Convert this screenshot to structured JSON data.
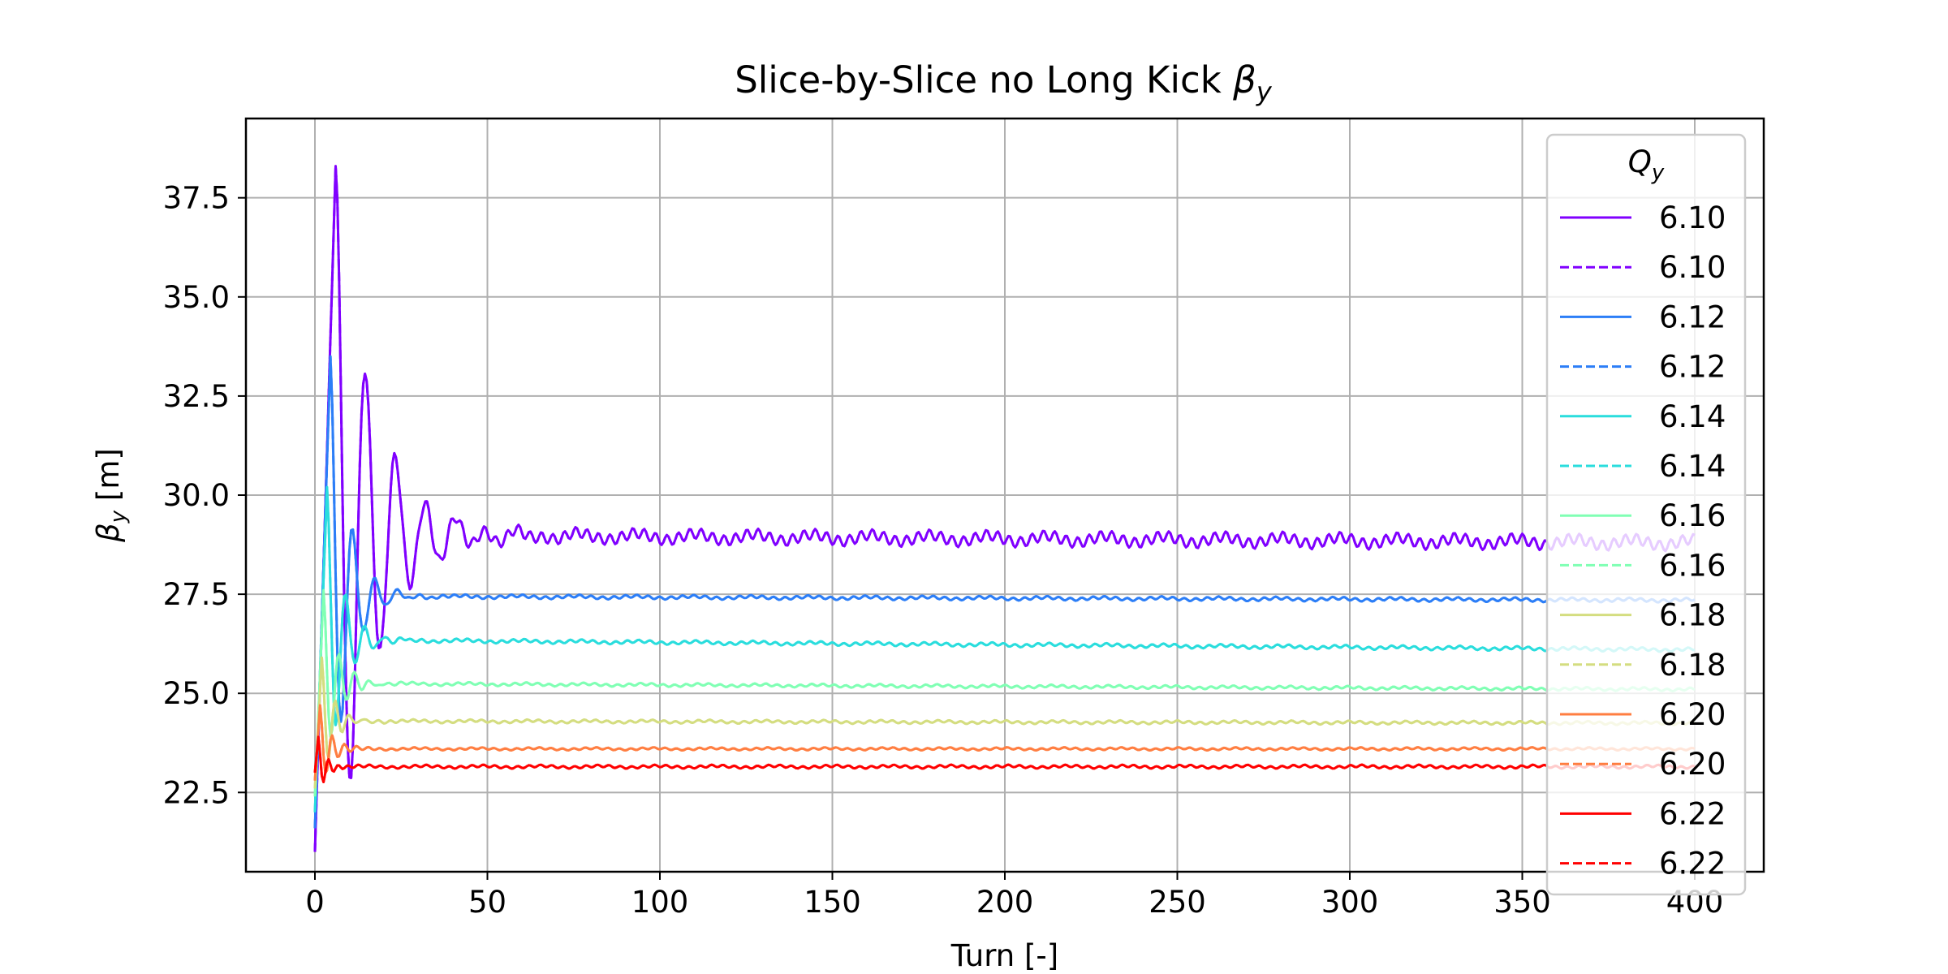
{
  "chart_data": {
    "type": "line",
    "title": "Slice-by-Slice no Long Kick",
    "title_symbol": "β",
    "title_symbol_sub": "y",
    "xlabel": "Turn [-]",
    "ylabel_symbol": "β",
    "ylabel_sub": "y",
    "ylabel_unit": "[m]",
    "xlim": [
      -20,
      420
    ],
    "ylim": [
      20.5,
      39.5
    ],
    "x_ticks": [
      0,
      50,
      100,
      150,
      200,
      250,
      300,
      350,
      400
    ],
    "x_tick_labels": [
      "0",
      "50",
      "100",
      "150",
      "200",
      "250",
      "300",
      "350",
      "400"
    ],
    "y_ticks": [
      22.5,
      25.0,
      27.5,
      30.0,
      32.5,
      35.0,
      37.5
    ],
    "y_tick_labels": [
      "22.5",
      "25.0",
      "27.5",
      "30.0",
      "32.5",
      "35.0",
      "37.5"
    ],
    "grid": true,
    "legend_position": "top-right",
    "legend_title_symbol": "Q",
    "legend_title_sub": "y",
    "series": [
      {
        "name": "6.10",
        "color": "#8000ff",
        "dash": "solid",
        "start": 21.0,
        "peak": 38.3,
        "peak_x": 6,
        "settle": 29.0,
        "end": 28.8,
        "amp": 0.22,
        "period": 8.7,
        "decay": 11
      },
      {
        "name": "6.10",
        "color": "#8000ff",
        "dash": "dashed",
        "start": 21.0,
        "peak": 38.3,
        "peak_x": 6,
        "settle": 29.0,
        "end": 28.8,
        "amp": 0.22,
        "period": 8.7,
        "decay": 11
      },
      {
        "name": "6.12",
        "color": "#2c7ef7",
        "dash": "solid",
        "start": 21.6,
        "peak": 33.5,
        "peak_x": 4.5,
        "settle": 27.45,
        "end": 27.35,
        "amp": 0.06,
        "period": 6.5,
        "decay": 5
      },
      {
        "name": "6.12",
        "color": "#2c7ef7",
        "dash": "dashed",
        "start": 21.6,
        "peak": 33.5,
        "peak_x": 4.5,
        "settle": 27.45,
        "end": 27.35,
        "amp": 0.06,
        "period": 6.5,
        "decay": 5
      },
      {
        "name": "6.14",
        "color": "#2adddd",
        "dash": "solid",
        "start": 22.0,
        "peak": 30.2,
        "peak_x": 3.5,
        "settle": 26.35,
        "end": 26.1,
        "amp": 0.06,
        "period": 5.5,
        "decay": 4.5
      },
      {
        "name": "6.14",
        "color": "#2adddd",
        "dash": "dashed",
        "start": 22.0,
        "peak": 30.2,
        "peak_x": 3.5,
        "settle": 26.35,
        "end": 26.1,
        "amp": 0.06,
        "period": 5.5,
        "decay": 4.5
      },
      {
        "name": "6.16",
        "color": "#80ffb4",
        "dash": "solid",
        "start": 22.4,
        "peak": 27.6,
        "peak_x": 2.5,
        "settle": 25.25,
        "end": 25.1,
        "amp": 0.05,
        "period": 4.5,
        "decay": 4
      },
      {
        "name": "6.16",
        "color": "#80ffb4",
        "dash": "dashed",
        "start": 22.4,
        "peak": 27.6,
        "peak_x": 2.5,
        "settle": 25.25,
        "end": 25.1,
        "amp": 0.05,
        "period": 4.5,
        "decay": 4
      },
      {
        "name": "6.18",
        "color": "#d4dd80",
        "dash": "solid",
        "start": 22.6,
        "peak": 25.9,
        "peak_x": 2,
        "settle": 24.3,
        "end": 24.25,
        "amp": 0.05,
        "period": 4,
        "decay": 3.5
      },
      {
        "name": "6.18",
        "color": "#d4dd80",
        "dash": "dashed",
        "start": 22.6,
        "peak": 25.9,
        "peak_x": 2,
        "settle": 24.3,
        "end": 24.25,
        "amp": 0.05,
        "period": 4,
        "decay": 3.5
      },
      {
        "name": "6.20",
        "color": "#ff7e41",
        "dash": "solid",
        "start": 22.8,
        "peak": 24.7,
        "peak_x": 1.5,
        "settle": 23.6,
        "end": 23.6,
        "amp": 0.04,
        "period": 3.5,
        "decay": 3
      },
      {
        "name": "6.20",
        "color": "#ff7e41",
        "dash": "dashed",
        "start": 22.8,
        "peak": 24.7,
        "peak_x": 1.5,
        "settle": 23.6,
        "end": 23.6,
        "amp": 0.04,
        "period": 3.5,
        "decay": 3
      },
      {
        "name": "6.22",
        "color": "#ff0000",
        "dash": "solid",
        "start": 23.0,
        "peak": 23.9,
        "peak_x": 1,
        "settle": 23.15,
        "end": 23.15,
        "amp": 0.05,
        "period": 3,
        "decay": 2.5
      },
      {
        "name": "6.22",
        "color": "#ff0000",
        "dash": "dashed",
        "start": 23.0,
        "peak": 23.9,
        "peak_x": 1,
        "settle": 23.15,
        "end": 23.15,
        "amp": 0.05,
        "period": 3,
        "decay": 2.5
      }
    ]
  }
}
